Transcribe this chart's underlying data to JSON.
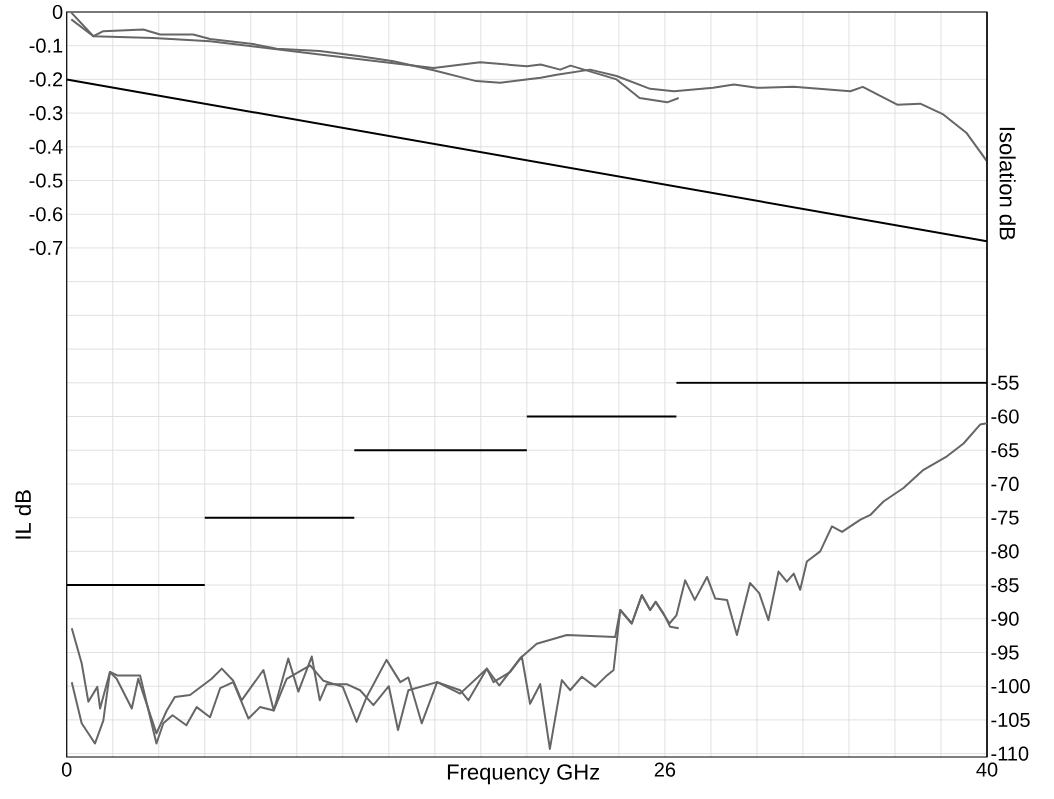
{
  "chart_data": {
    "type": "line",
    "xlabel": "Frequency GHz",
    "ylabel": "IL dB",
    "y2label": "Isolation dB",
    "xlim": [
      0,
      40
    ],
    "xticks": [
      0,
      {
        "value": 2,
        "label": null
      },
      {
        "value": 4,
        "label": null
      },
      {
        "value": 6,
        "label": null
      },
      {
        "value": 8,
        "label": null
      },
      {
        "value": 10,
        "label": null
      },
      {
        "value": 12,
        "label": null
      },
      {
        "value": 14,
        "label": null
      },
      {
        "value": 16,
        "label": null
      },
      {
        "value": 18,
        "label": null
      },
      {
        "value": 20,
        "label": null
      },
      {
        "value": 22,
        "label": null
      },
      {
        "value": 24,
        "label": null
      },
      26,
      {
        "value": 28,
        "label": null
      },
      {
        "value": 30,
        "label": null
      },
      {
        "value": 32,
        "label": null
      },
      {
        "value": 34,
        "label": null
      },
      {
        "value": 36,
        "label": null
      },
      {
        "value": 38,
        "label": null
      },
      40
    ],
    "ylim": [
      -2.21,
      0
    ],
    "yticks": [
      0,
      -0.1,
      -0.2,
      -0.3,
      -0.4,
      -0.5,
      -0.6,
      -0.7,
      {
        "value": -0.8,
        "label": null
      },
      {
        "value": -0.9,
        "label": null
      },
      {
        "value": -1.0,
        "label": null
      },
      {
        "value": -1.1,
        "label": null
      },
      {
        "value": -1.2,
        "label": null
      },
      {
        "value": -1.3,
        "label": null
      },
      {
        "value": -1.4,
        "label": null
      },
      {
        "value": -1.5,
        "label": null
      },
      {
        "value": -1.6,
        "label": null
      },
      {
        "value": -1.7,
        "label": null
      },
      {
        "value": -1.8,
        "label": null
      },
      {
        "value": -1.9,
        "label": null
      },
      {
        "value": -2.0,
        "label": null
      },
      {
        "value": -2.1,
        "label": null
      },
      {
        "value": -2.2,
        "label": null
      }
    ],
    "y2lim": [
      -110.5,
      0
    ],
    "y2ticks": [
      -55,
      -60,
      -65,
      -70,
      -75,
      -80,
      -85,
      -90,
      -95,
      -100,
      -105,
      -110
    ],
    "grid": true,
    "marker": "none",
    "line_style": "solid",
    "series": [
      {
        "axis": "y",
        "color": "#666666",
        "x": [
          0.2,
          1.16,
          1.59,
          3.33,
          4.06,
          5.5,
          6.23,
          8.1,
          9.13,
          11.0,
          12.75,
          14.2,
          15.95,
          17.8,
          18.84,
          20.6,
          21.3,
          22.75,
          23.9,
          25.36,
          26.4,
          28.1,
          29.0,
          30.0,
          31.6,
          34.06,
          34.6,
          36.1,
          37.1,
          38.1,
          39.1,
          40
        ],
        "values": [
          -0.002,
          -0.072,
          -0.057,
          -0.052,
          -0.067,
          -0.067,
          -0.08,
          -0.095,
          -0.109,
          -0.116,
          -0.131,
          -0.146,
          -0.173,
          -0.205,
          -0.21,
          -0.195,
          -0.186,
          -0.171,
          -0.19,
          -0.228,
          -0.235,
          -0.225,
          -0.215,
          -0.225,
          -0.222,
          -0.235,
          -0.222,
          -0.275,
          -0.272,
          -0.304,
          -0.358,
          -0.443
        ]
      },
      {
        "axis": "y",
        "color": "#666666",
        "x": [
          0.2,
          1.16,
          3.77,
          6.23,
          11.0,
          15.95,
          17.97,
          20.0,
          20.6,
          21.45,
          21.9,
          23.9,
          24.9,
          26.1,
          26.6
        ],
        "values": [
          -0.022,
          -0.072,
          -0.077,
          -0.087,
          -0.126,
          -0.166,
          -0.149,
          -0.161,
          -0.156,
          -0.171,
          -0.159,
          -0.2,
          -0.255,
          -0.268,
          -0.255
        ]
      },
      {
        "axis": "y",
        "color": "#000000",
        "x": [
          0,
          40
        ],
        "values": [
          -0.2,
          -0.68
        ]
      },
      {
        "axis": "y2",
        "color": "#666666",
        "x": [
          0.22,
          0.65,
          0.94,
          1.33,
          1.45,
          1.88,
          2.17,
          2.83,
          3.11,
          3.9,
          4.35,
          4.7,
          5.36,
          6.3,
          6.74,
          7.24,
          7.6,
          8.55,
          9.0,
          9.63,
          10.07,
          10.65,
          11.0,
          11.3,
          12.17,
          12.75,
          13.33,
          14.0,
          14.4,
          14.85,
          16.1,
          17.1,
          18.26,
          18.8,
          19.7,
          20.43,
          21.74,
          23.84,
          24.06,
          24.56,
          25.0,
          25.36,
          25.6,
          25.94,
          26.23,
          26.6
        ],
        "values": [
          -91.4,
          -96.6,
          -102.3,
          -100.1,
          -103.3,
          -97.9,
          -98.9,
          -103.3,
          -98.9,
          -107.0,
          -103.6,
          -101.6,
          -101.3,
          -98.9,
          -97.4,
          -99.2,
          -102.1,
          -97.6,
          -103.6,
          -95.9,
          -100.8,
          -95.6,
          -102.1,
          -99.7,
          -99.7,
          -100.6,
          -102.8,
          -100.0,
          -106.5,
          -100.6,
          -99.4,
          -101.1,
          -97.4,
          -99.9,
          -95.9,
          -93.7,
          -92.4,
          -92.7,
          -88.7,
          -90.7,
          -86.5,
          -88.7,
          -87.5,
          -89.2,
          -91.2,
          -91.4
        ]
      },
      {
        "axis": "y2",
        "color": "#666666",
        "x": [
          0.22,
          0.65,
          1.23,
          1.59,
          1.88,
          2.2,
          3.19,
          3.9,
          4.2,
          4.6,
          5.2,
          5.65,
          6.23,
          6.67,
          7.24,
          7.9,
          8.4,
          9.0,
          9.56,
          10.58,
          11.16,
          12.0,
          12.6,
          13.04,
          13.9,
          14.5,
          14.85,
          15.43,
          16.1,
          17.1,
          17.46,
          18.26,
          18.55,
          19.27,
          19.78,
          20.14,
          20.58,
          21.0,
          21.52,
          21.88,
          22.39,
          22.97,
          23.48,
          23.77,
          24.06,
          24.56,
          25.0,
          25.36,
          25.6,
          26.2,
          26.5,
          26.88,
          27.3,
          27.83,
          28.19,
          28.7,
          29.13,
          29.7,
          30.1,
          30.5,
          30.94,
          31.3,
          31.6,
          31.88,
          32.17,
          32.75,
          33.26,
          33.7,
          34.5,
          34.93,
          35.5,
          36.37,
          37.24,
          38.26,
          38.98,
          39.7,
          40
        ],
        "values": [
          -99.4,
          -105.5,
          -108.5,
          -105.1,
          -97.9,
          -98.4,
          -98.4,
          -108.5,
          -105.5,
          -104.3,
          -105.8,
          -103.1,
          -104.6,
          -100.3,
          -99.4,
          -104.8,
          -103.1,
          -103.6,
          -98.9,
          -96.9,
          -99.2,
          -100.1,
          -105.3,
          -101.6,
          -96.1,
          -99.4,
          -98.7,
          -105.5,
          -99.4,
          -100.6,
          -102.1,
          -97.4,
          -99.4,
          -97.9,
          -95.6,
          -102.6,
          -99.7,
          -109.3,
          -99.1,
          -100.6,
          -98.6,
          -100.1,
          -98.4,
          -97.6,
          -88.7,
          -90.7,
          -86.5,
          -88.7,
          -87.5,
          -90.7,
          -89.5,
          -84.3,
          -87.2,
          -83.8,
          -87.0,
          -87.2,
          -92.4,
          -84.7,
          -86.2,
          -90.2,
          -83.0,
          -84.5,
          -83.3,
          -85.7,
          -81.5,
          -80.0,
          -76.3,
          -77.1,
          -75.3,
          -74.6,
          -72.6,
          -70.6,
          -67.9,
          -65.9,
          -64.0,
          -61.2,
          -61.0
        ]
      },
      {
        "axis": "y2",
        "color": "#000000",
        "x": [
          0,
          6
        ],
        "values": [
          -85,
          -85
        ]
      },
      {
        "axis": "y2",
        "color": "#000000",
        "x": [
          6,
          12.5
        ],
        "values": [
          -75,
          -75
        ]
      },
      {
        "axis": "y2",
        "color": "#000000",
        "x": [
          12.5,
          20
        ],
        "values": [
          -65,
          -65
        ]
      },
      {
        "axis": "y2",
        "color": "#000000",
        "x": [
          20,
          26.5
        ],
        "values": [
          -60,
          -60
        ]
      },
      {
        "axis": "y2",
        "color": "#000000",
        "x": [
          26.5,
          40
        ],
        "values": [
          -55,
          -55
        ]
      }
    ]
  }
}
